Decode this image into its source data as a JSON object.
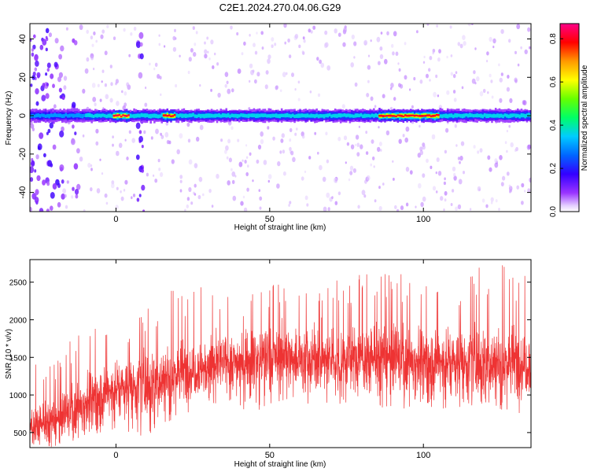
{
  "title": "C2E1.2024.270.04.06.G29",
  "chart_data": [
    {
      "type": "heatmap",
      "xlabel": "Height of straight line (km)",
      "ylabel": "Frequency (Hz)",
      "xlim": [
        -28,
        135
      ],
      "ylim": [
        -50,
        48
      ],
      "x_ticks": [
        0,
        50,
        100
      ],
      "y_ticks": [
        -40,
        -20,
        0,
        20,
        40
      ],
      "colorbar": {
        "label": "Normalized spectral amplitude",
        "range": [
          0.0,
          0.87
        ],
        "ticks": [
          0.0,
          0.2,
          0.4,
          0.6,
          0.8
        ],
        "colormap": "rainbow (violet-blue-cyan-green-yellow-red-magenta)"
      },
      "ridge": {
        "frequency_hz": 0,
        "description": "strong carrier line near 0 Hz across full height range; peak amplitude ~0.8 near 0-20 km and 85-105 km",
        "peaks_km": [
          [
            -1,
            4,
            0.82
          ],
          [
            15,
            19,
            0.8
          ],
          [
            85,
            105,
            0.8
          ]
        ]
      },
      "noise_bands_km": [
        [
          -28,
          -17
        ],
        [
          -14,
          -12
        ],
        [
          7,
          9
        ]
      ]
    },
    {
      "type": "line",
      "xlabel": "Height of straight line (km)",
      "ylabel": "SNR (10 * v/v)",
      "xlim": [
        -28,
        135
      ],
      "ylim": [
        300,
        2800
      ],
      "x_ticks": [
        0,
        50,
        100
      ],
      "y_ticks": [
        500,
        1000,
        1500,
        2000,
        2500
      ],
      "series_color": "#ee3333",
      "trend": {
        "x": [
          -28,
          -20,
          -10,
          0,
          10,
          20,
          30,
          40,
          50,
          60,
          70,
          80,
          90,
          100,
          110,
          120,
          135
        ],
        "mean": [
          600,
          650,
          900,
          1100,
          1150,
          1300,
          1400,
          1450,
          1500,
          1500,
          1450,
          1500,
          1500,
          1450,
          1450,
          1450,
          1450
        ],
        "min": [
          300,
          300,
          450,
          550,
          350,
          700,
          900,
          800,
          800,
          900,
          800,
          850,
          800,
          850,
          800,
          800,
          700
        ],
        "max": [
          1400,
          1450,
          2100,
          2000,
          2200,
          2450,
          2450,
          2250,
          2500,
          2500,
          2550,
          2600,
          2700,
          2650,
          2650,
          2800,
          2650
        ]
      }
    }
  ]
}
